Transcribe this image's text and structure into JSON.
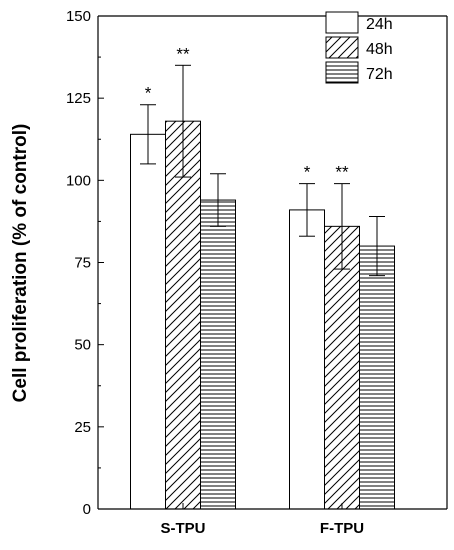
{
  "chart_data": {
    "type": "bar",
    "title": "",
    "xlabel": "",
    "ylabel": "Cell proliferation (% of control)",
    "ylim": [
      0,
      150
    ],
    "yticks": [
      0,
      25,
      50,
      75,
      100,
      125,
      150
    ],
    "categories": [
      "S-TPU",
      "F-TPU"
    ],
    "series": [
      {
        "name": "24h",
        "pattern": "none",
        "values": [
          114,
          91
        ],
        "errors": [
          9,
          8
        ],
        "annotations": [
          "*",
          "*"
        ]
      },
      {
        "name": "48h",
        "pattern": "diagonal",
        "values": [
          118,
          86
        ],
        "errors": [
          17,
          13
        ],
        "annotations": [
          "**",
          "**"
        ]
      },
      {
        "name": "72h",
        "pattern": "horizontal",
        "values": [
          94,
          80
        ],
        "errors": [
          8,
          9
        ],
        "annotations": [
          "",
          ""
        ]
      }
    ],
    "legend_position": "top-right",
    "grid": false
  },
  "colors": {
    "bar_fill": "#ffffff",
    "stroke": "#000000"
  }
}
